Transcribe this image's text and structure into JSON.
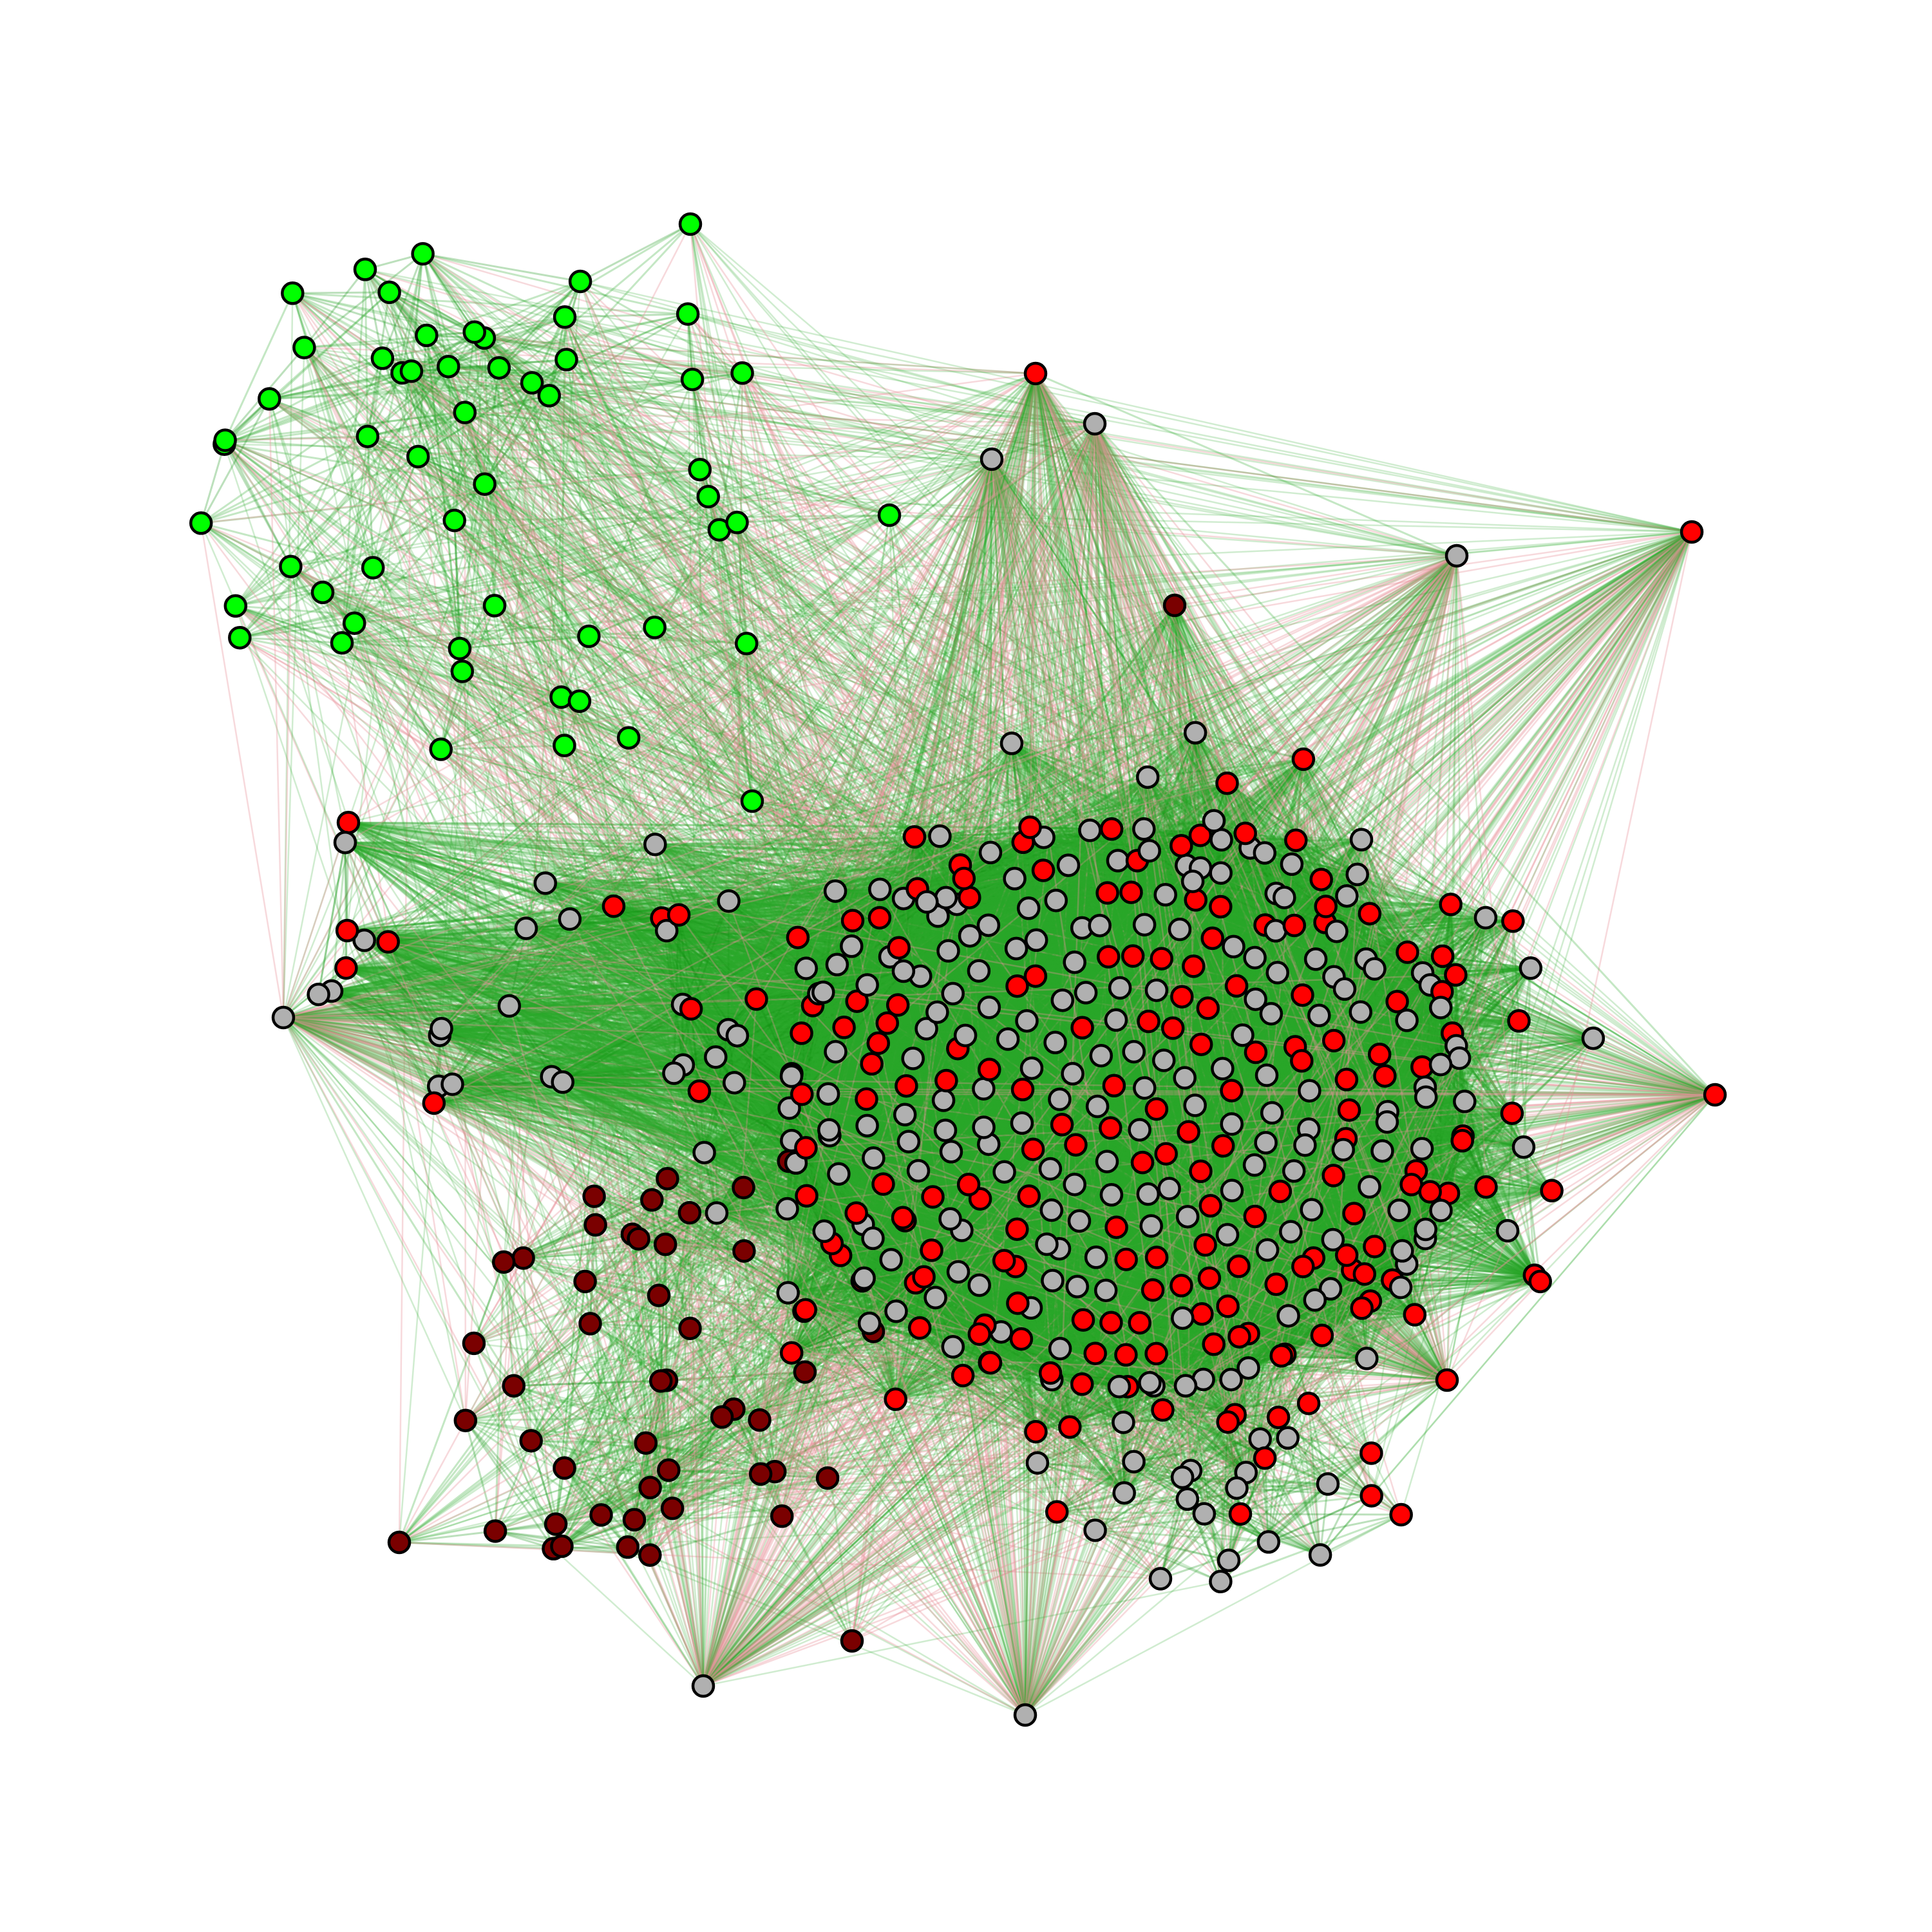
{
  "graph": {
    "type": "network",
    "directed": false,
    "legend": null,
    "title": null,
    "colors": {
      "background": "#ffffff",
      "edge_positive": "#2aa82a",
      "edge_positive_strong": "#0e8f0e",
      "edge_negative": "#e8929a",
      "node_outline": "#000000"
    },
    "node_groups": [
      {
        "id": "bright-green",
        "fill": "#00ff00",
        "count": 55
      },
      {
        "id": "red",
        "fill": "#ff0000",
        "count": 120
      },
      {
        "id": "gray",
        "fill": "#b0b0b0",
        "count": 180
      },
      {
        "id": "dark-red",
        "fill": "#7a0000",
        "count": 50
      }
    ],
    "clusters": [
      {
        "id": "cluster-top-left",
        "group": "bright-green",
        "position": "top-left"
      },
      {
        "id": "cluster-bottom-left",
        "group": "dark-red",
        "position": "bottom-left"
      },
      {
        "id": "cluster-center",
        "groups": [
          "red",
          "gray"
        ],
        "position": "center-right"
      },
      {
        "id": "cluster-bottom-center",
        "groups": [
          "red",
          "gray"
        ],
        "position": "bottom-center"
      }
    ]
  }
}
